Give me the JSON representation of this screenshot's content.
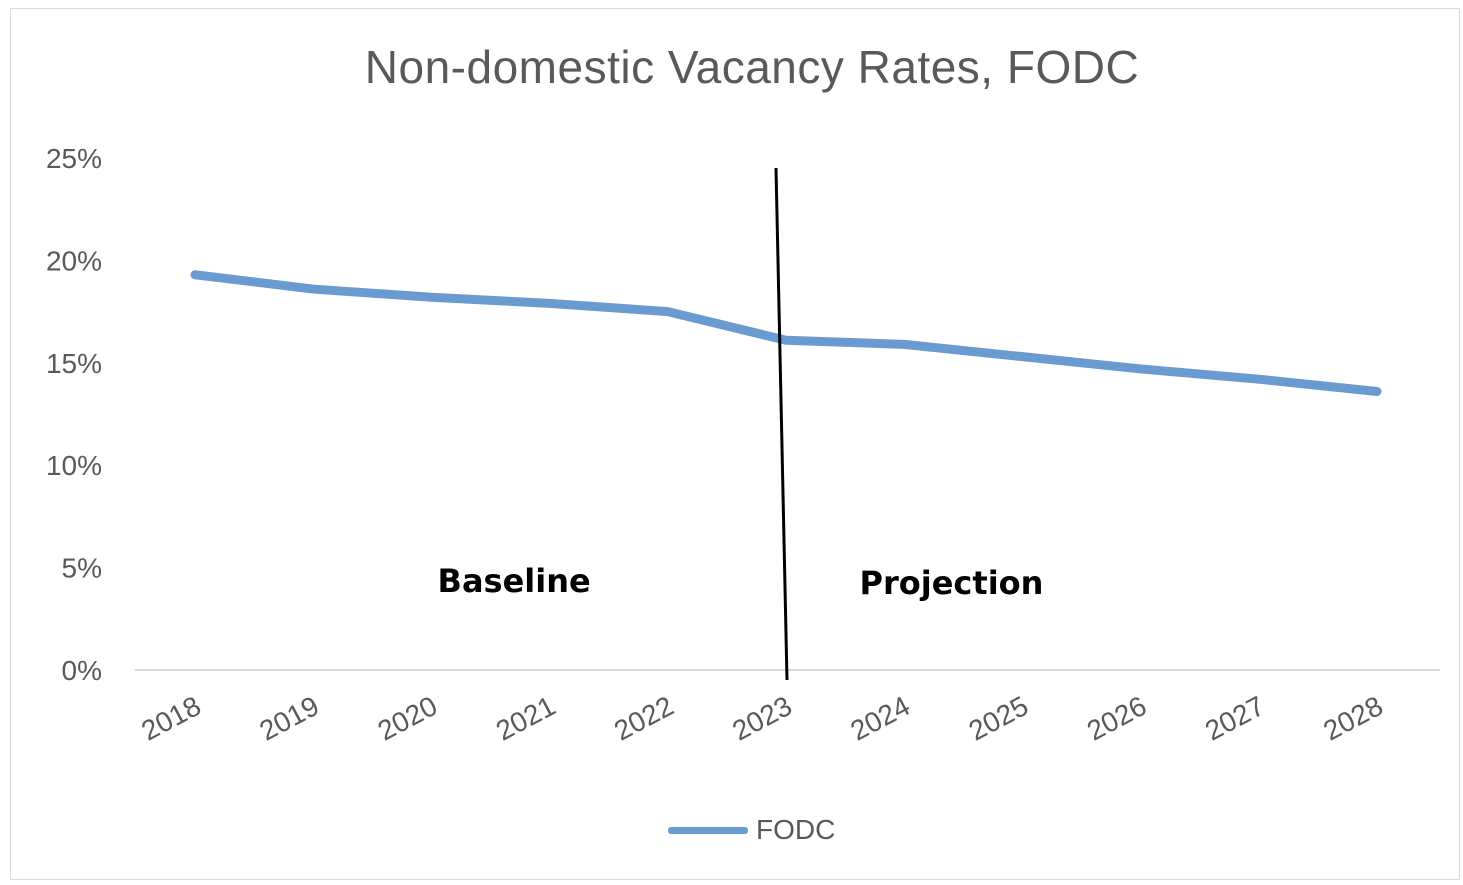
{
  "chart_data": {
    "type": "line",
    "title": "Non-domestic Vacancy Rates, FODC",
    "categories": [
      "2018",
      "2019",
      "2020",
      "2021",
      "2022",
      "2023",
      "2024",
      "2025",
      "2026",
      "2027",
      "2028"
    ],
    "series": [
      {
        "name": "FODC",
        "color": "#6a9bd0",
        "values": [
          19.3,
          18.6,
          18.2,
          17.9,
          17.5,
          16.1,
          15.9,
          15.3,
          14.7,
          14.2,
          13.6
        ]
      }
    ],
    "ylim": [
      0,
      25
    ],
    "yticks": [
      "0%",
      "5%",
      "10%",
      "15%",
      "20%",
      "25%"
    ],
    "ytick_values": [
      0,
      5,
      10,
      15,
      20,
      25
    ],
    "xlabel": "",
    "ylabel": "",
    "grid": false,
    "legend": "bottom",
    "divider_at": "2023",
    "annotations": [
      {
        "text": "Baseline",
        "region": "before-divider"
      },
      {
        "text": "Projection",
        "region": "after-divider"
      }
    ]
  }
}
